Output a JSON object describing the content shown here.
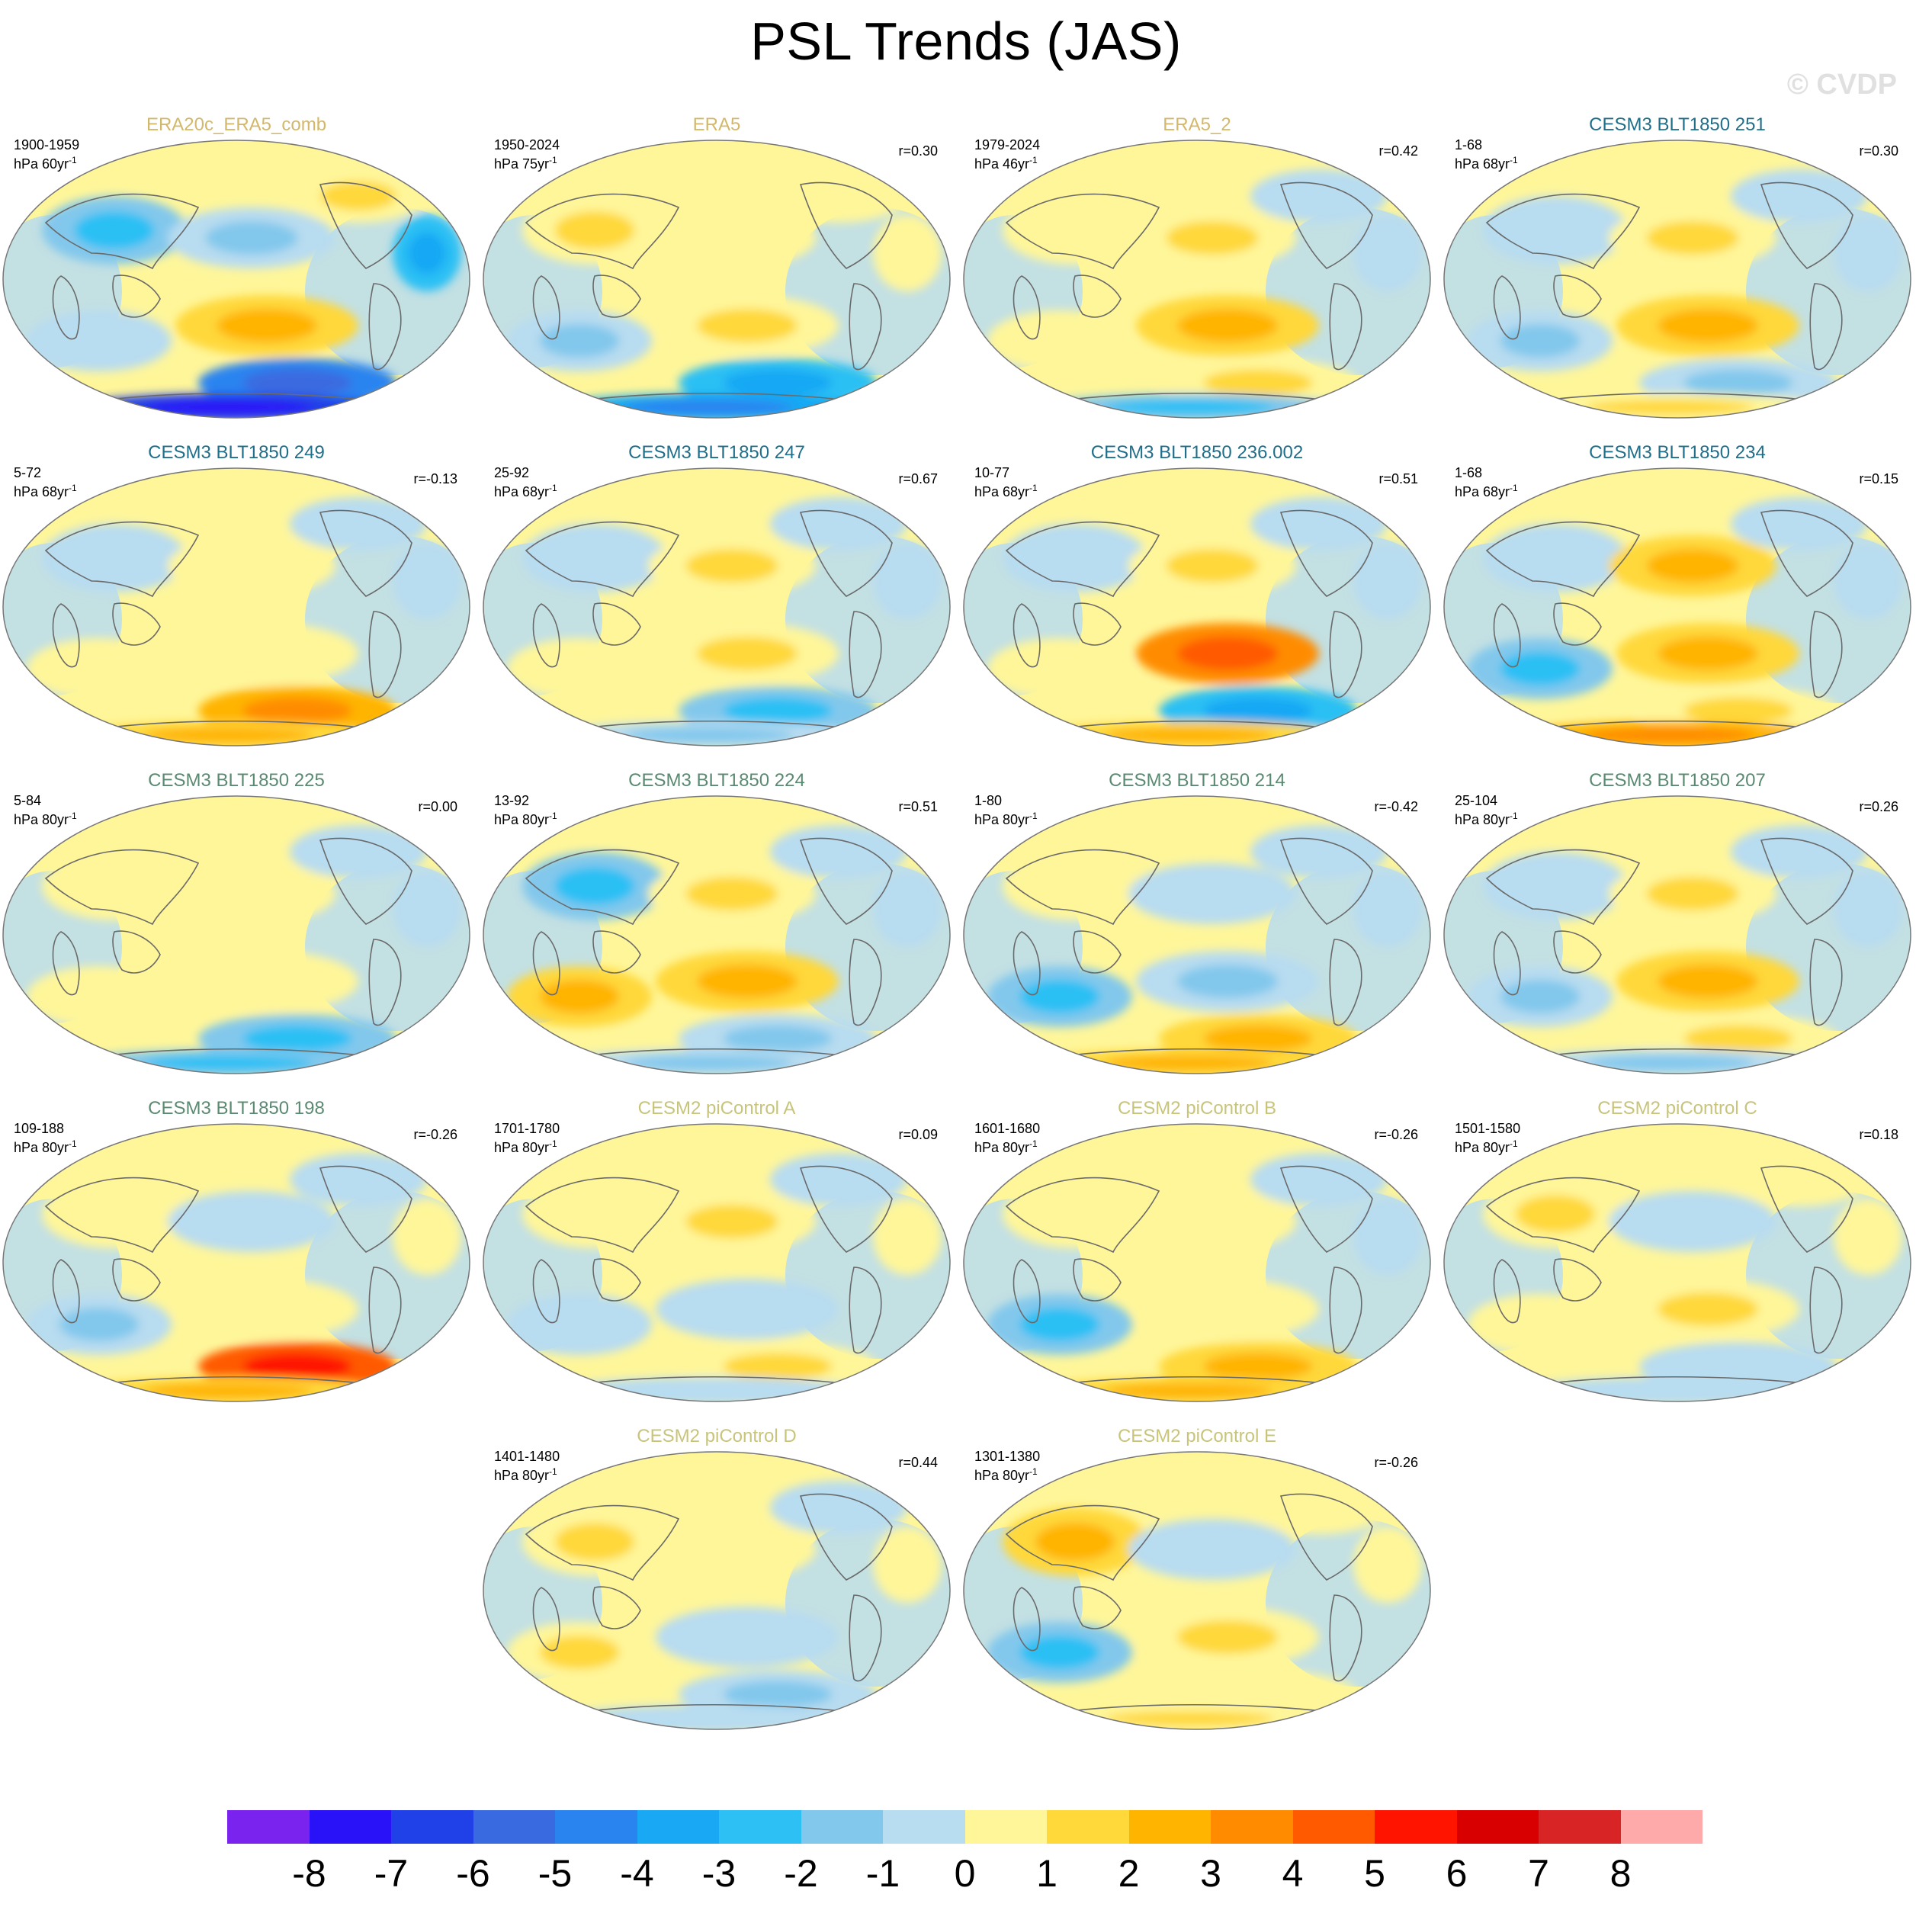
{
  "title": "PSL Trends (JAS)",
  "watermark": "© CVDP",
  "panels": [
    {
      "title": "ERA20c_ERA5_comb",
      "title_color": "#d4b86a",
      "years": "1900-1959",
      "units": "hPa 60yr",
      "units_sup": "-1",
      "r": "",
      "pattern": [
        -3,
        -2,
        2,
        -4,
        -1,
        3,
        -6,
        -8
      ]
    },
    {
      "title": "ERA5",
      "title_color": "#d4b86a",
      "years": "1950-2024",
      "units": "hPa 75yr",
      "units_sup": "-1",
      "r": "r=0.30",
      "pattern": [
        2,
        1,
        1,
        1,
        -2,
        2,
        -4,
        -5
      ]
    },
    {
      "title": "ERA5_2",
      "title_color": "#d4b86a",
      "years": "1979-2024",
      "units": "hPa 46yr",
      "units_sup": "-1",
      "r": "r=0.42",
      "pattern": [
        1,
        2,
        -1,
        -1,
        1,
        3,
        2,
        -3
      ]
    },
    {
      "title": "CESM3 BLT1850 251",
      "title_color": "#1f6f8b",
      "years": "1-68",
      "units": "hPa 68yr",
      "units_sup": "-1",
      "r": "r=0.30",
      "pattern": [
        -1,
        2,
        -1,
        -1,
        -2,
        3,
        -2,
        2
      ]
    },
    {
      "title": "CESM3 BLT1850 249",
      "title_color": "#1f6f8b",
      "years": "5-72",
      "units": "hPa 68yr",
      "units_sup": "-1",
      "r": "r=-0.13",
      "pattern": [
        -1,
        1,
        -1,
        -1,
        1,
        1,
        4,
        3
      ]
    },
    {
      "title": "CESM3 BLT1850 247",
      "title_color": "#1f6f8b",
      "years": "25-92",
      "units": "hPa 68yr",
      "units_sup": "-1",
      "r": "r=0.67",
      "pattern": [
        -1,
        2,
        -1,
        -1,
        1,
        2,
        -3,
        -2
      ]
    },
    {
      "title": "CESM3 BLT1850 236.002",
      "title_color": "#1f6f8b",
      "years": "10-77",
      "units": "hPa 68yr",
      "units_sup": "-1",
      "r": "r=0.51",
      "pattern": [
        -1,
        2,
        -1,
        -1,
        1,
        5,
        -4,
        3
      ]
    },
    {
      "title": "CESM3 BLT1850 234",
      "title_color": "#1f6f8b",
      "years": "1-68",
      "units": "hPa 68yr",
      "units_sup": "-1",
      "r": "r=0.15",
      "pattern": [
        -1,
        3,
        -1,
        -1,
        -3,
        3,
        2,
        4
      ]
    },
    {
      "title": "CESM3 BLT1850 225",
      "title_color": "#5a8a72",
      "years": "5-84",
      "units": "hPa 80yr",
      "units_sup": "-1",
      "r": "r=0.00",
      "pattern": [
        1,
        1,
        -1,
        -1,
        1,
        1,
        -3,
        -3
      ]
    },
    {
      "title": "CESM3 BLT1850 224",
      "title_color": "#5a8a72",
      "years": "13-92",
      "units": "hPa 80yr",
      "units_sup": "-1",
      "r": "r=0.51",
      "pattern": [
        -3,
        2,
        -1,
        -1,
        3,
        3,
        -2,
        -2
      ]
    },
    {
      "title": "CESM3 BLT1850 214",
      "title_color": "#5a8a72",
      "years": "1-80",
      "units": "hPa 80yr",
      "units_sup": "-1",
      "r": "r=-0.42",
      "pattern": [
        1,
        -1,
        -1,
        -1,
        -3,
        -2,
        3,
        3
      ]
    },
    {
      "title": "CESM3 BLT1850 207",
      "title_color": "#5a8a72",
      "years": "25-104",
      "units": "hPa 80yr",
      "units_sup": "-1",
      "r": "r=0.26",
      "pattern": [
        -1,
        2,
        -1,
        -1,
        -2,
        3,
        2,
        -2
      ]
    },
    {
      "title": "CESM3 BLT1850 198",
      "title_color": "#5a8a72",
      "years": "109-188",
      "units": "hPa 80yr",
      "units_sup": "-1",
      "r": "r=-0.26",
      "pattern": [
        1,
        -1,
        -1,
        1,
        -2,
        1,
        6,
        3
      ]
    },
    {
      "title": "CESM2 piControl A",
      "title_color": "#c8c47a",
      "years": "1701-1780",
      "units": "hPa 80yr",
      "units_sup": "-1",
      "r": "r=0.09",
      "pattern": [
        1,
        2,
        -1,
        1,
        -1,
        -1,
        2,
        -1
      ]
    },
    {
      "title": "CESM2 piControl B",
      "title_color": "#c8c47a",
      "years": "1601-1680",
      "units": "hPa 80yr",
      "units_sup": "-1",
      "r": "r=-0.26",
      "pattern": [
        1,
        1,
        -1,
        -1,
        -3,
        1,
        3,
        3
      ]
    },
    {
      "title": "CESM2 piControl C",
      "title_color": "#c8c47a",
      "years": "1501-1580",
      "units": "hPa 80yr",
      "units_sup": "-1",
      "r": "r=0.18",
      "pattern": [
        2,
        -1,
        1,
        1,
        1,
        2,
        -1,
        -1
      ]
    },
    {
      "title": "CESM2 piControl D",
      "title_color": "#c8c47a",
      "years": "1401-1480",
      "units": "hPa 80yr",
      "units_sup": "-1",
      "r": "r=0.44",
      "pattern": [
        2,
        1,
        -1,
        1,
        2,
        -1,
        -2,
        -1
      ]
    },
    {
      "title": "CESM2 piControl E",
      "title_color": "#c8c47a",
      "years": "1301-1380",
      "units": "hPa 80yr",
      "units_sup": "-1",
      "r": "r=-0.26",
      "pattern": [
        3,
        -1,
        1,
        1,
        -3,
        2,
        1,
        2
      ]
    }
  ],
  "colorbar": {
    "labels": [
      "-8",
      "-7",
      "-6",
      "-5",
      "-4",
      "-3",
      "-2",
      "-1",
      "0",
      "1",
      "2",
      "3",
      "4",
      "5",
      "6",
      "7",
      "8"
    ],
    "colors": [
      "#7a22ee",
      "#2a12f8",
      "#2040e8",
      "#3a6ae0",
      "#2a84f0",
      "#18a8f4",
      "#2cc0f4",
      "#82c8ec",
      "#b8dcf0",
      "#fff69a",
      "#ffd83a",
      "#ffb400",
      "#ff8c00",
      "#ff5a00",
      "#ff1400",
      "#d80000",
      "#d82424",
      "#ffaaaa"
    ]
  }
}
